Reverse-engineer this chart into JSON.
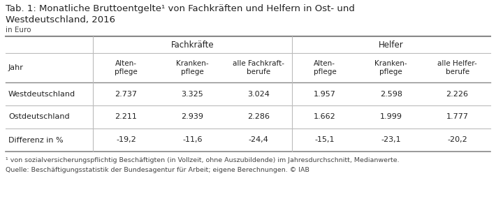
{
  "title_line1": "Tab. 1: Monatliche Bruttoentgelte¹ von Fachkräften und Helfern in Ost- und",
  "title_line2": "Westdeutschland, 2016",
  "subtitle": "in Euro",
  "col_group1": "Fachkräfte",
  "col_group2": "Helfer",
  "row_header": "Jahr",
  "col_headers": [
    "Alten-\npflege",
    "Kranken-\npflege",
    "alle Fachkraft-\nberufe",
    "Alten-\npflege",
    "Kranken-\npflege",
    "alle Helfer-\nberufe"
  ],
  "rows": [
    {
      "label": "Westdeutschland",
      "values": [
        "2.737",
        "3.325",
        "3.024",
        "1.957",
        "2.598",
        "2.226"
      ]
    },
    {
      "label": "Ostdeutschland",
      "values": [
        "2.211",
        "2.939",
        "2.286",
        "1.662",
        "1.999",
        "1.777"
      ]
    },
    {
      "label": "Differenz in %",
      "values": [
        "-19,2",
        "-11,6",
        "-24,4",
        "-15,1",
        "-23,1",
        "-20,2"
      ]
    }
  ],
  "footnote1": "¹ von sozialversicherungspflichtig Beschäftigten (in Vollzeit, ohne Auszubildende) im Jahresdurchschnitt, Medianwerte.",
  "footnote2": "Quelle: Beschäftigungsstatistik der Bundesagentur für Arbeit; eigene Berechnungen. © IAB",
  "bg_color": "#ffffff",
  "text_color": "#222222",
  "line_color": "#bbbbbb",
  "thick_line_color": "#888888"
}
